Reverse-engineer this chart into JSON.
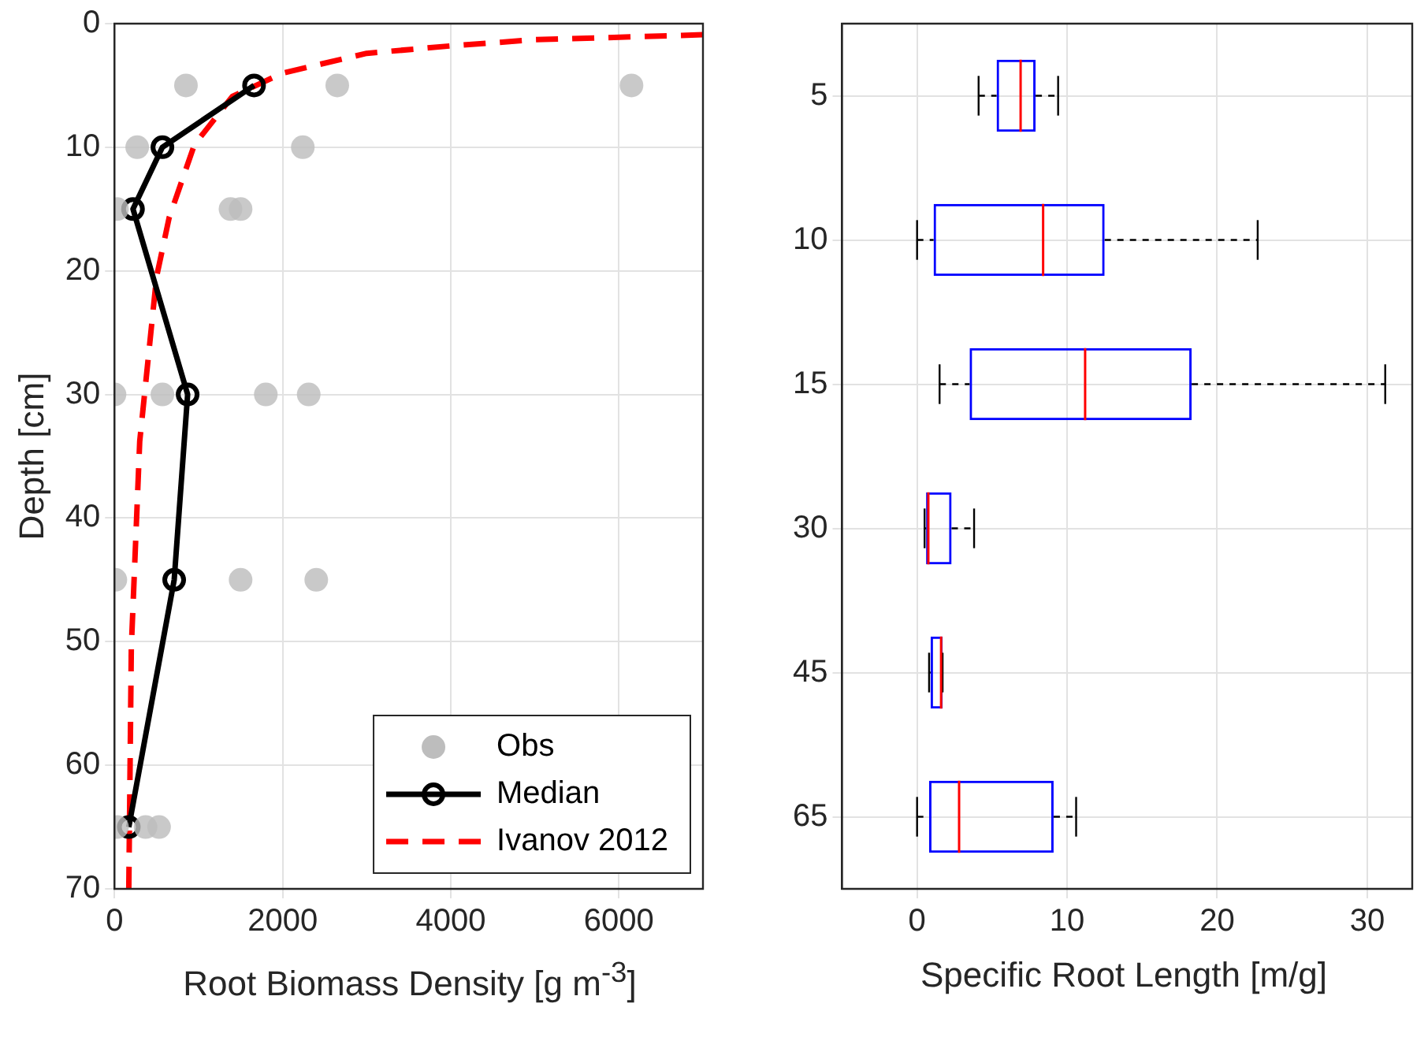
{
  "chart_data": [
    {
      "type": "scatter",
      "xlabel": "Root Biomass Density [g m$^{-3}$]",
      "ylabel": "Depth [cm]",
      "xlim": [
        0,
        7000
      ],
      "xticks": [
        0,
        2000,
        4000,
        6000
      ],
      "ylim": [
        70,
        0
      ],
      "yticks": [
        0,
        10,
        20,
        30,
        40,
        50,
        60,
        70
      ],
      "grid": true,
      "legend": "bottom right",
      "series": [
        {
          "name": "Obs",
          "type": "scatter",
          "color": "#bdbdbd",
          "marker": "circle",
          "x": [
            850,
            2650,
            6150,
            270,
            2240,
            30,
            1380,
            1500,
            0,
            570,
            1800,
            2310,
            10,
            1500,
            2400,
            30,
            370,
            530
          ],
          "values": [
            5,
            5,
            5,
            10,
            10,
            15,
            15,
            15,
            30,
            30,
            30,
            30,
            45,
            45,
            45,
            65,
            65,
            65
          ]
        },
        {
          "name": "Median",
          "type": "line",
          "color": "#000000",
          "marker": "circle",
          "line_style": "solid",
          "x": [
            1660,
            570,
            220,
            870,
            710,
            170
          ],
          "values": [
            5,
            10,
            15,
            30,
            45,
            65
          ]
        },
        {
          "name": "Ivanov 2012",
          "type": "line",
          "color": "#ff0000",
          "marker": "none",
          "line_style": "dashed",
          "x": [
            7000,
            5000,
            4000,
            3000,
            2000,
            1400,
            950,
            650,
            500,
            300,
            200,
            170
          ],
          "values": [
            0.9,
            1.3,
            1.8,
            2.4,
            4,
            5.9,
            9.8,
            15.7,
            20.5,
            33.8,
            50.5,
            70
          ]
        }
      ]
    },
    {
      "type": "box",
      "orientation": "horizontal",
      "xlabel": "Specific Root Length [m/g]",
      "categories": [
        "5",
        "10",
        "15",
        "30",
        "45",
        "65"
      ],
      "xlim": [
        -5,
        33
      ],
      "xticks": [
        0,
        10,
        20,
        30
      ],
      "grid": true,
      "color": "#0000ff",
      "boxes": [
        {
          "low": 4.1,
          "q1": 5.3,
          "median": 6.9,
          "q3": 7.9,
          "high": 9.4
        },
        {
          "low": 0,
          "q1": 1.1,
          "median": 8.4,
          "q3": 12.5,
          "high": 22.7
        },
        {
          "low": 1.5,
          "q1": 3.5,
          "median": 11.2,
          "q3": 18.3,
          "high": 31.2
        },
        {
          "low": 0.5,
          "q1": 0.6,
          "median": 0.75,
          "q3": 2.3,
          "high": 3.8
        },
        {
          "low": 0.8,
          "q1": 0.9,
          "median": 1.6,
          "q3": 1.7,
          "high": 1.7
        },
        {
          "low": 0,
          "q1": 0.8,
          "median": 2.8,
          "q3": 9.1,
          "high": 10.6
        }
      ]
    }
  ]
}
